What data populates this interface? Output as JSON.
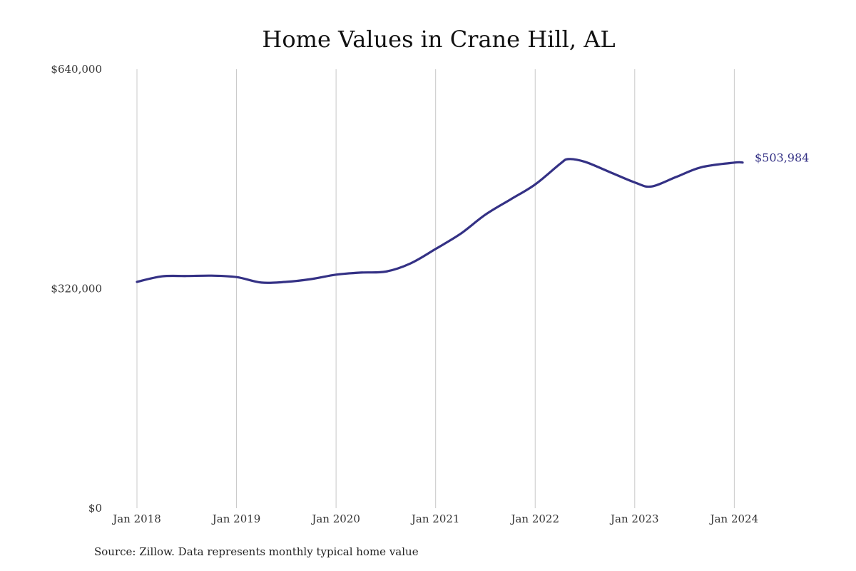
{
  "chart_data": {
    "type": "line",
    "title": "Home Values in Crane Hill, AL",
    "xlabel": "",
    "ylabel": "",
    "ylim": [
      0,
      640000
    ],
    "xlim": [
      "2018-01",
      "2024-02"
    ],
    "y_ticks": [
      0,
      320000,
      640000
    ],
    "y_tick_labels": [
      "$0",
      "$320,000",
      "$640,000"
    ],
    "x_ticks": [
      "2018-01",
      "2019-01",
      "2020-01",
      "2021-01",
      "2022-01",
      "2023-01",
      "2024-01"
    ],
    "x_tick_labels": [
      "Jan 2018",
      "Jan 2019",
      "Jan 2020",
      "Jan 2021",
      "Jan 2022",
      "Jan 2023",
      "Jan 2024"
    ],
    "grid": "vertical",
    "legend": "none",
    "end_label": "$503,984",
    "line_color": "#343185",
    "series": [
      {
        "x": [
          "2018-01",
          "2018-04",
          "2018-07",
          "2018-10",
          "2019-01",
          "2019-04",
          "2019-07",
          "2019-10",
          "2020-01",
          "2020-04",
          "2020-07",
          "2020-10",
          "2021-01",
          "2021-04",
          "2021-07",
          "2021-10",
          "2022-01",
          "2022-04",
          "2022-05",
          "2022-07",
          "2022-10",
          "2023-01",
          "2023-03",
          "2023-06",
          "2023-09",
          "2024-01",
          "2024-02"
        ],
        "values": [
          330000,
          338000,
          338500,
          339000,
          337000,
          329000,
          330000,
          334000,
          340500,
          343500,
          345000,
          357000,
          378000,
          400000,
          428000,
          450000,
          472000,
          502000,
          509000,
          505000,
          490000,
          475000,
          469000,
          483000,
          497000,
          503900,
          503984
        ]
      }
    ]
  },
  "source_note": "Source: Zillow. Data represents monthly typical home value"
}
